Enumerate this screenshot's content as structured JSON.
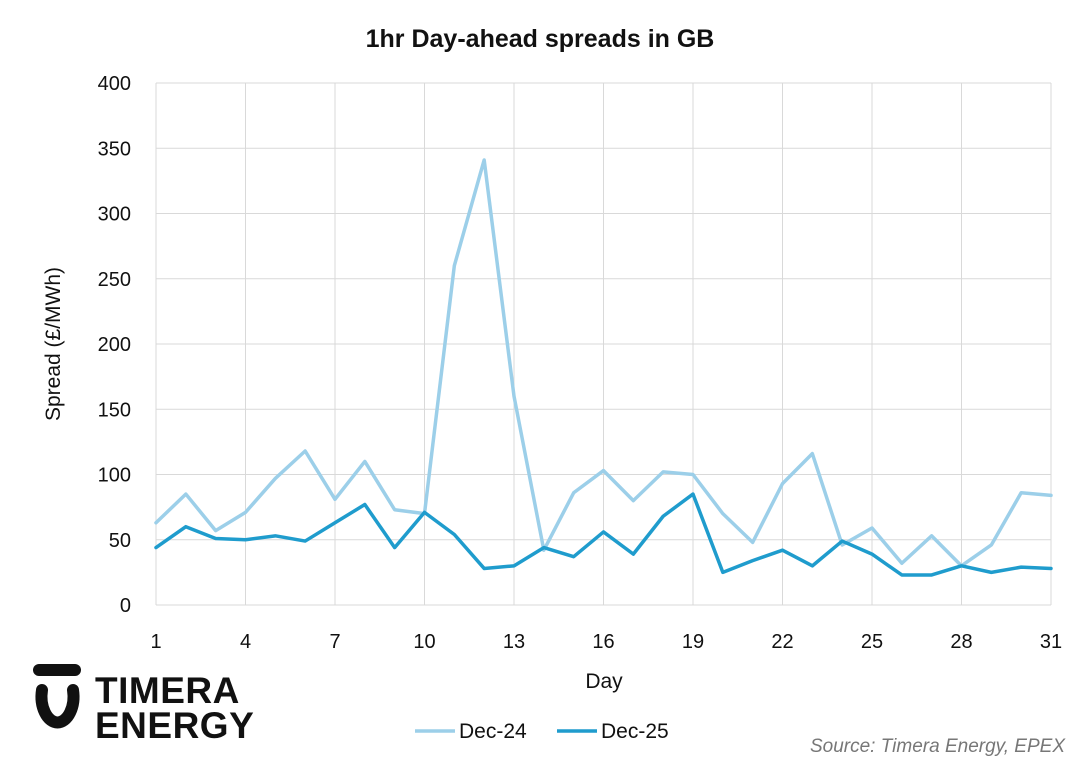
{
  "chart_data": {
    "type": "line",
    "title": "1hr Day-ahead spreads in GB",
    "xlabel": "Day",
    "ylabel": "Spread (£/MWh)",
    "xlim": [
      1,
      31
    ],
    "ylim": [
      0,
      400
    ],
    "x_ticks": [
      1,
      4,
      7,
      10,
      13,
      16,
      19,
      22,
      25,
      28,
      31
    ],
    "y_ticks": [
      0,
      50,
      100,
      150,
      200,
      250,
      300,
      350,
      400
    ],
    "grid": true,
    "legend": "bottom",
    "x": [
      1,
      2,
      3,
      4,
      5,
      6,
      7,
      8,
      9,
      10,
      11,
      12,
      13,
      14,
      15,
      16,
      17,
      18,
      19,
      20,
      21,
      22,
      23,
      24,
      25,
      26,
      27,
      28,
      29,
      30,
      31
    ],
    "series": [
      {
        "name": "Dec-24",
        "color": "#9ccfe9",
        "values": [
          63,
          85,
          57,
          71,
          97,
          118,
          81,
          110,
          73,
          70,
          260,
          341,
          160,
          42,
          86,
          103,
          80,
          102,
          100,
          70,
          48,
          93,
          116,
          46,
          59,
          32,
          53,
          30,
          46,
          86,
          84
        ]
      },
      {
        "name": "Dec-25",
        "color": "#1f9ccd",
        "values": [
          44,
          60,
          51,
          50,
          53,
          49,
          63,
          77,
          44,
          71,
          54,
          28,
          30,
          44,
          37,
          56,
          39,
          68,
          85,
          25,
          34,
          42,
          30,
          49,
          39,
          23,
          23,
          30,
          25,
          29,
          28
        ]
      }
    ]
  },
  "logo": {
    "line1": "TIMERA",
    "line2": "ENERGY"
  },
  "source": "Source: Timera Energy, EPEX"
}
